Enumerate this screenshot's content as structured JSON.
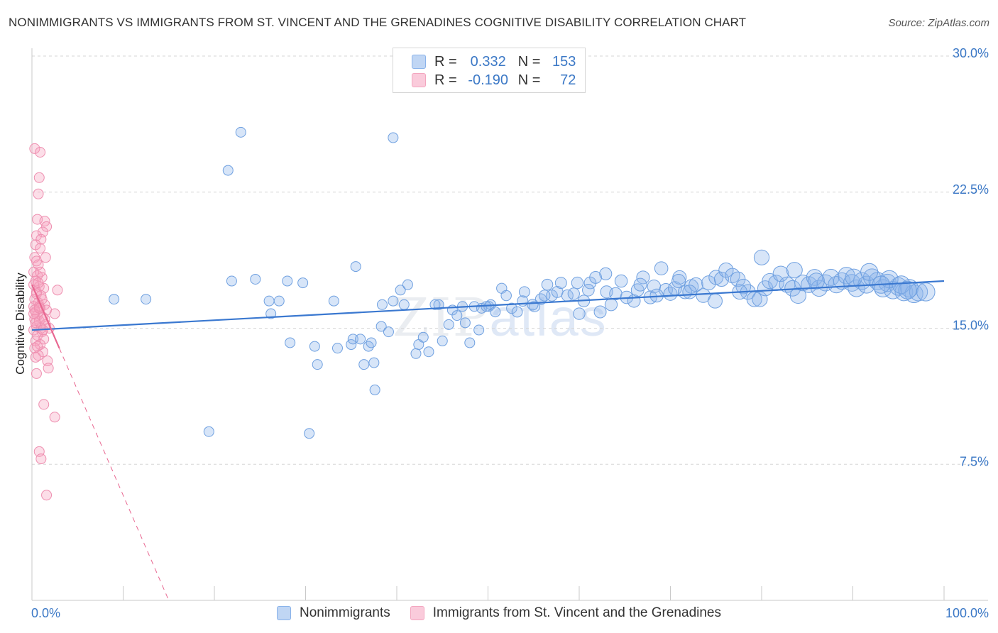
{
  "title": "NONIMMIGRANTS VS IMMIGRANTS FROM ST. VINCENT AND THE GRENADINES COGNITIVE DISABILITY CORRELATION CHART",
  "source": "Source: ZipAtlas.com",
  "watermark": {
    "zip": "ZIP",
    "atlas": "atlas"
  },
  "legend": {
    "rows": [
      {
        "r_label": "R =",
        "r_value": "0.332",
        "n_label": "N =",
        "n_value": "153",
        "color": "#8ab3ea"
      },
      {
        "r_label": "R =",
        "r_value": "-0.190",
        "n_label": "N =",
        "n_value": "72",
        "color": "#f3a6bf"
      }
    ]
  },
  "bottom_legend": [
    "Nonimmigrants",
    "Immigrants from St. Vincent and the Grenadines"
  ],
  "colors": {
    "blue": "#3a78d0",
    "blue_fill": "rgba(140,180,235,0.35)",
    "pink": "#e86690",
    "pink_fill": "rgba(245,160,190,0.35)",
    "grid": "#d6d6d6",
    "label": "#3b78c6"
  },
  "chart_data": {
    "type": "scatter",
    "xlabel": "",
    "ylabel": "Cognitive Disability",
    "xlim": [
      0,
      100
    ],
    "ylim": [
      0,
      30
    ],
    "x_tick_labels": [
      "0.0%",
      "100.0%"
    ],
    "y_ticks": [
      7.5,
      15.0,
      22.5,
      30.0
    ],
    "y_tick_labels": [
      "7.5%",
      "15.0%",
      "22.5%",
      "30.0%"
    ],
    "grid": "horizontal dashed",
    "series": [
      {
        "name": "Nonimmigrants",
        "points": [
          [
            22.9,
            25.8
          ],
          [
            39.6,
            25.5
          ],
          [
            21.5,
            23.7
          ],
          [
            9.0,
            16.6
          ],
          [
            12.5,
            16.6
          ],
          [
            21.9,
            17.6
          ],
          [
            24.5,
            17.7
          ],
          [
            26.0,
            16.5
          ],
          [
            26.2,
            15.8
          ],
          [
            27.1,
            16.5
          ],
          [
            28.0,
            17.6
          ],
          [
            28.3,
            14.2
          ],
          [
            29.7,
            17.5
          ],
          [
            31.3,
            13.0
          ],
          [
            31.0,
            14.0
          ],
          [
            33.1,
            16.5
          ],
          [
            33.5,
            13.9
          ],
          [
            35.0,
            14.1
          ],
          [
            35.2,
            14.4
          ],
          [
            36.0,
            14.4
          ],
          [
            35.5,
            18.4
          ],
          [
            36.9,
            14.0
          ],
          [
            37.2,
            14.2
          ],
          [
            37.5,
            13.1
          ],
          [
            38.3,
            15.1
          ],
          [
            38.4,
            16.3
          ],
          [
            39.1,
            14.8
          ],
          [
            39.6,
            16.5
          ],
          [
            40.4,
            17.1
          ],
          [
            40.8,
            16.3
          ],
          [
            41.2,
            17.4
          ],
          [
            42.1,
            13.6
          ],
          [
            42.4,
            14.1
          ],
          [
            42.9,
            14.5
          ],
          [
            43.5,
            13.7
          ],
          [
            44.2,
            16.3
          ],
          [
            44.6,
            16.3
          ],
          [
            45.0,
            14.3
          ],
          [
            45.7,
            15.2
          ],
          [
            46.1,
            16.0
          ],
          [
            46.6,
            15.7
          ],
          [
            47.2,
            16.2
          ],
          [
            47.5,
            15.3
          ],
          [
            48.0,
            14.2
          ],
          [
            48.5,
            16.2
          ],
          [
            49.0,
            14.9
          ],
          [
            49.3,
            16.1
          ],
          [
            50.1,
            16.2
          ],
          [
            50.3,
            16.3
          ],
          [
            50.8,
            15.9
          ],
          [
            51.5,
            17.2
          ],
          [
            52.0,
            16.8
          ],
          [
            52.6,
            16.1
          ],
          [
            53.2,
            15.9
          ],
          [
            53.8,
            16.5
          ],
          [
            54.0,
            17.0
          ],
          [
            55.1,
            16.2
          ],
          [
            55.8,
            16.6
          ],
          [
            56.5,
            17.4
          ],
          [
            57.0,
            16.8
          ],
          [
            57.6,
            17.0
          ],
          [
            58.0,
            17.5
          ],
          [
            58.7,
            16.8
          ],
          [
            59.4,
            16.9
          ],
          [
            60.0,
            15.8
          ],
          [
            60.5,
            16.5
          ],
          [
            61.2,
            17.5
          ],
          [
            61.8,
            17.8
          ],
          [
            62.3,
            15.9
          ],
          [
            63.0,
            17.0
          ],
          [
            63.5,
            16.3
          ],
          [
            64.0,
            16.9
          ],
          [
            64.6,
            17.6
          ],
          [
            65.2,
            16.7
          ],
          [
            66.0,
            16.5
          ],
          [
            66.4,
            17.1
          ],
          [
            67.0,
            17.8
          ],
          [
            67.8,
            16.7
          ],
          [
            68.2,
            17.3
          ],
          [
            69.0,
            18.3
          ],
          [
            69.5,
            17.1
          ],
          [
            70.0,
            16.9
          ],
          [
            70.5,
            17.2
          ],
          [
            71.0,
            17.8
          ],
          [
            71.6,
            17.0
          ],
          [
            72.3,
            17.3
          ],
          [
            72.8,
            17.4
          ],
          [
            73.6,
            16.8
          ],
          [
            74.2,
            17.5
          ],
          [
            75.0,
            17.8
          ],
          [
            75.6,
            17.7
          ],
          [
            76.1,
            18.2
          ],
          [
            76.8,
            17.9
          ],
          [
            77.4,
            17.7
          ],
          [
            78.0,
            17.3
          ],
          [
            78.5,
            17.0
          ],
          [
            79.2,
            16.6
          ],
          [
            79.8,
            16.6
          ],
          [
            80.4,
            17.2
          ],
          [
            80.9,
            17.6
          ],
          [
            81.6,
            17.5
          ],
          [
            82.1,
            18.0
          ],
          [
            82.8,
            17.4
          ],
          [
            83.4,
            17.2
          ],
          [
            84.0,
            16.8
          ],
          [
            84.5,
            17.5
          ],
          [
            85.2,
            17.4
          ],
          [
            85.8,
            17.8
          ],
          [
            86.3,
            17.2
          ],
          [
            87.0,
            17.5
          ],
          [
            87.6,
            17.8
          ],
          [
            88.2,
            17.4
          ],
          [
            88.8,
            17.6
          ],
          [
            89.3,
            17.9
          ],
          [
            89.9,
            17.5
          ],
          [
            90.4,
            17.2
          ],
          [
            91.0,
            17.6
          ],
          [
            91.5,
            17.4
          ],
          [
            92.1,
            17.8
          ],
          [
            92.7,
            17.6
          ],
          [
            93.3,
            17.2
          ],
          [
            93.8,
            17.5
          ],
          [
            94.4,
            17.1
          ],
          [
            95.0,
            17.3
          ],
          [
            95.6,
            17.0
          ],
          [
            96.2,
            17.2
          ],
          [
            96.7,
            16.9
          ],
          [
            97.2,
            17.0
          ],
          [
            80.0,
            18.9
          ],
          [
            83.6,
            18.2
          ],
          [
            72.1,
            17.0
          ],
          [
            68.5,
            16.8
          ],
          [
            66.7,
            17.4
          ],
          [
            61.0,
            17.1
          ],
          [
            59.8,
            17.5
          ],
          [
            56.2,
            16.8
          ],
          [
            54.9,
            16.3
          ],
          [
            62.9,
            18.0
          ],
          [
            70.9,
            17.6
          ],
          [
            74.9,
            16.5
          ],
          [
            77.6,
            17.0
          ],
          [
            86.0,
            17.6
          ],
          [
            90.1,
            17.8
          ],
          [
            91.8,
            18.1
          ],
          [
            94.0,
            17.7
          ],
          [
            95.3,
            17.4
          ],
          [
            96.0,
            17.1
          ],
          [
            93.1,
            17.4
          ],
          [
            98.0,
            17.0
          ],
          [
            19.4,
            9.3
          ],
          [
            30.4,
            9.2
          ],
          [
            36.4,
            13.0
          ],
          [
            37.6,
            11.6
          ],
          [
            49.8,
            16.2
          ]
        ]
      },
      {
        "name": "Immigrants from St. Vincent and the Grenadines",
        "points": [
          [
            0.3,
            24.9
          ],
          [
            0.9,
            24.7
          ],
          [
            0.8,
            23.3
          ],
          [
            0.7,
            22.4
          ],
          [
            0.6,
            21.0
          ],
          [
            1.4,
            20.9
          ],
          [
            1.6,
            20.6
          ],
          [
            0.5,
            20.1
          ],
          [
            1.2,
            20.3
          ],
          [
            1.0,
            19.9
          ],
          [
            0.4,
            19.6
          ],
          [
            0.9,
            19.4
          ],
          [
            0.3,
            18.9
          ],
          [
            1.5,
            18.9
          ],
          [
            0.7,
            18.5
          ],
          [
            0.2,
            18.1
          ],
          [
            0.6,
            17.9
          ],
          [
            1.1,
            17.8
          ],
          [
            0.4,
            17.6
          ],
          [
            0.8,
            17.3
          ],
          [
            1.3,
            17.2
          ],
          [
            2.8,
            17.1
          ],
          [
            0.5,
            17.0
          ],
          [
            1.0,
            16.8
          ],
          [
            0.3,
            16.6
          ],
          [
            0.7,
            16.4
          ],
          [
            1.4,
            16.3
          ],
          [
            0.2,
            16.2
          ],
          [
            0.9,
            16.1
          ],
          [
            1.6,
            16.0
          ],
          [
            0.4,
            15.9
          ],
          [
            2.5,
            15.8
          ],
          [
            0.6,
            15.7
          ],
          [
            1.2,
            15.6
          ],
          [
            0.3,
            15.5
          ],
          [
            0.8,
            15.4
          ],
          [
            1.5,
            15.2
          ],
          [
            0.5,
            15.1
          ],
          [
            1.9,
            15.0
          ],
          [
            0.2,
            14.9
          ],
          [
            1.1,
            14.8
          ],
          [
            0.6,
            14.6
          ],
          [
            1.3,
            14.4
          ],
          [
            0.4,
            14.3
          ],
          [
            0.9,
            14.1
          ],
          [
            0.3,
            13.9
          ],
          [
            1.2,
            13.7
          ],
          [
            0.7,
            13.5
          ],
          [
            1.7,
            13.2
          ],
          [
            0.5,
            12.5
          ],
          [
            1.8,
            12.8
          ],
          [
            1.3,
            10.8
          ],
          [
            2.5,
            10.1
          ],
          [
            0.8,
            8.2
          ],
          [
            1.0,
            7.8
          ],
          [
            1.6,
            5.8
          ],
          [
            0.2,
            17.4
          ],
          [
            0.5,
            16.9
          ],
          [
            0.8,
            16.2
          ],
          [
            0.4,
            15.3
          ],
          [
            1.0,
            15.0
          ],
          [
            0.6,
            14.0
          ],
          [
            0.3,
            16.0
          ],
          [
            0.7,
            17.5
          ],
          [
            1.1,
            16.6
          ],
          [
            0.2,
            15.8
          ],
          [
            0.9,
            18.1
          ],
          [
            0.5,
            18.7
          ],
          [
            1.2,
            14.9
          ],
          [
            0.4,
            13.4
          ],
          [
            0.8,
            16.1
          ],
          [
            1.4,
            15.5
          ]
        ]
      }
    ],
    "trend_lines": [
      {
        "series": "Nonimmigrants",
        "x": [
          0,
          100
        ],
        "y": [
          14.9,
          17.6
        ],
        "style": "solid"
      },
      {
        "series": "Immigrants from St. Vincent and the Grenadines",
        "x": [
          0,
          3
        ],
        "y": [
          17.4,
          13.9
        ],
        "style": "solid"
      },
      {
        "series": "Immigrants from St. Vincent and the Grenadines",
        "x": [
          3,
          15
        ],
        "y": [
          13.9,
          0
        ],
        "style": "dashed"
      }
    ]
  }
}
